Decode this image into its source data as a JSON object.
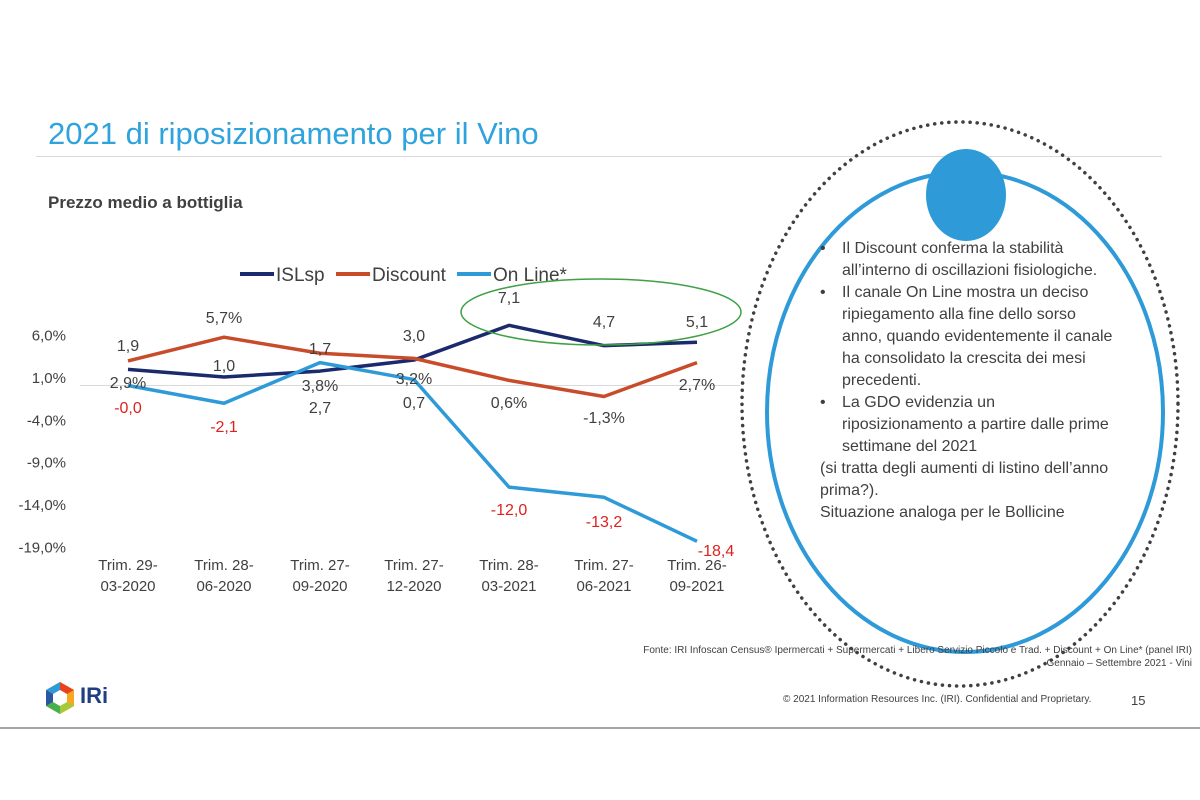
{
  "slide": {
    "title": "2021 di riposizionamento per il Vino",
    "subtitle": "Prezzo medio a bottiglia",
    "page_number": "15",
    "copyright": "© 2021 Information Resources Inc. (IRI). Confidential and Proprietary.",
    "source_line1": "Fonte: IRI Infoscan Census® Ipermercati + Supermercati + Libero Servizio Piccolo e Trad. + Discount + On Line* (panel IRI)",
    "source_line2": "Gennaio – Settembre 2021 - Vini",
    "logo_text": "IRi"
  },
  "notes": {
    "bullets": [
      "Il Discount conferma la stabilità all’interno di oscillazioni fisiologiche.",
      "Il canale On Line mostra un deciso ripiegamento alla fine dello sorso anno, quando evidentemente il canale ha consolidato la crescita dei mesi precedenti.",
      "La GDO evidenzia un riposizionamento a partire dalle prime settimane del 2021"
    ],
    "after_1": "(si tratta degli aumenti di listino dell’anno prima?).",
    "after_2": "Situazione analoga per le Bollicine"
  },
  "colors": {
    "title": "#2ea3dc",
    "islsp": "#1a2a6c",
    "discount": "#c84b2a",
    "online": "#2e9ad8",
    "negative_label": "#e02020",
    "highlight_ellipse": "#3fa046",
    "callout_circle": "#2e9ad8"
  },
  "chart_data": {
    "type": "line",
    "title": "Prezzo medio a bottiglia",
    "xlabel": "",
    "ylabel": "",
    "ylim": [
      -19,
      6
    ],
    "yticks": [
      "6,0%",
      "1,0%",
      "-4,0%",
      "-9,0%",
      "-14,0%",
      "-19,0%"
    ],
    "categories": [
      "Trim. 29-03-2020",
      "Trim. 28-06-2020",
      "Trim. 27-09-2020",
      "Trim. 27-12-2020",
      "Trim. 28-03-2021",
      "Trim. 27-06-2021",
      "Trim. 26-09-2021"
    ],
    "category_lines": [
      [
        "Trim. 29-",
        "03-2020"
      ],
      [
        "Trim. 28-",
        "06-2020"
      ],
      [
        "Trim. 27-",
        "09-2020"
      ],
      [
        "Trim. 27-",
        "12-2020"
      ],
      [
        "Trim. 28-",
        "03-2021"
      ],
      [
        "Trim. 27-",
        "06-2021"
      ],
      [
        "Trim. 26-",
        "09-2021"
      ]
    ],
    "legend": [
      "ISLsp",
      "Discount",
      "On Line*"
    ],
    "legend_position": "top",
    "grid": false,
    "series": [
      {
        "name": "ISLsp",
        "values": [
          1.9,
          1.0,
          1.7,
          3.0,
          7.1,
          4.7,
          5.1
        ],
        "labels": [
          "1,9",
          "1,0",
          "1,7",
          "3,0",
          "7,1",
          "4,7",
          "5,1"
        ]
      },
      {
        "name": "Discount",
        "values": [
          2.9,
          5.7,
          3.8,
          3.2,
          0.6,
          -1.3,
          2.7
        ],
        "labels": [
          "2,9%",
          "5,7%",
          "3,8%",
          "3,2%",
          "0,6%",
          "-1,3%",
          "2,7%"
        ]
      },
      {
        "name": "On Line*",
        "values": [
          -0.0,
          -2.1,
          2.7,
          0.7,
          -12.0,
          -13.2,
          -18.4
        ],
        "labels": [
          "-0,0",
          "-2,1",
          "2,7",
          "0,7",
          "-12,0",
          "-13,2",
          "-18,4"
        ]
      }
    ]
  }
}
